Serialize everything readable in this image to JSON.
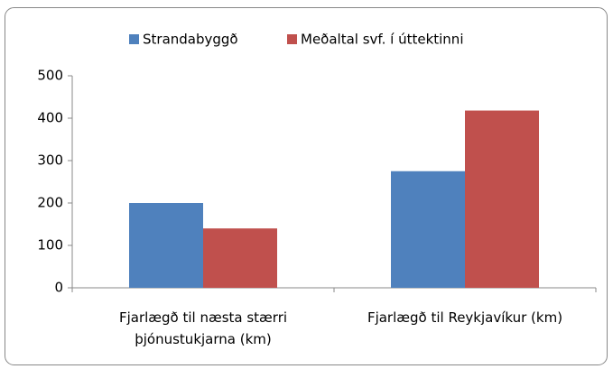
{
  "chart_data": {
    "type": "bar",
    "categories": [
      "Fjarlægð til næsta stærri þjónustukjarna (km)",
      "Fjarlægð til Reykjavíkur (km)"
    ],
    "series": [
      {
        "name": "Strandabyggð",
        "color": "#4f81bd",
        "values": [
          200,
          275
        ]
      },
      {
        "name": "Meðaltal svf. í úttektinni",
        "color": "#c0504d",
        "values": [
          140,
          418
        ]
      }
    ],
    "ylim": [
      0,
      500
    ],
    "yticks": [
      0,
      100,
      200,
      300,
      400,
      500
    ],
    "grid": false,
    "legend": "top"
  }
}
